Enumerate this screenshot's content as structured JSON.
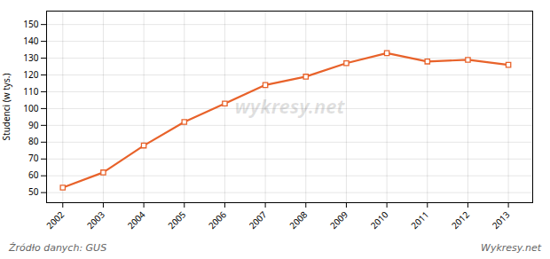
{
  "chart_data": {
    "type": "line",
    "x": [
      2002,
      2003,
      2004,
      2005,
      2006,
      2007,
      2008,
      2009,
      2010,
      2011,
      2012,
      2013
    ],
    "values": [
      53,
      62,
      78,
      92,
      103,
      114,
      119,
      127,
      133,
      128,
      129,
      126
    ],
    "color": "#E8622A",
    "marker": "square",
    "ylabel": "Studenci (w tys.)",
    "xlim": [
      2001.6,
      2013.6
    ],
    "xticks": [
      2002,
      2003,
      2004,
      2005,
      2006,
      2007,
      2008,
      2009,
      2010,
      2011,
      2012,
      2013
    ],
    "ylim": [
      44,
      158
    ],
    "yticks": [
      50,
      60,
      70,
      80,
      90,
      100,
      110,
      120,
      130,
      140,
      150
    ],
    "grid": true,
    "annotations": [
      "wykresy.net",
      "Źródło danych:  GUS",
      "Wykresy.net"
    ]
  }
}
